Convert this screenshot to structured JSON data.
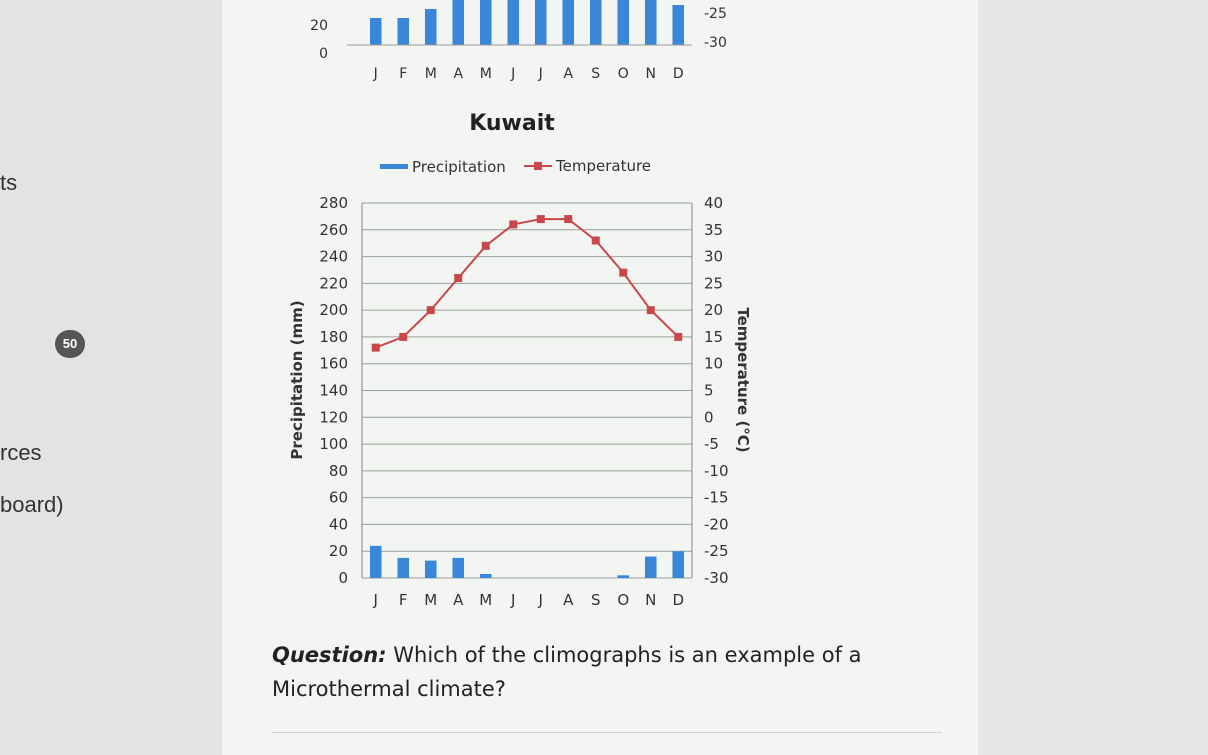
{
  "sidebar": {
    "items": [
      "ts",
      "rces",
      "board)"
    ],
    "badge": "50"
  },
  "top_chart": {
    "ytick_labels_left": [
      "20",
      "0"
    ],
    "ytick_labels_right": [
      "-25",
      "-30"
    ],
    "months": [
      "J",
      "F",
      "M",
      "A",
      "M",
      "J",
      "J",
      "A",
      "S",
      "O",
      "N",
      "D"
    ]
  },
  "chart_data": {
    "type": "bar",
    "title": "Kuwait",
    "categories": [
      "J",
      "F",
      "M",
      "A",
      "M",
      "J",
      "J",
      "A",
      "S",
      "O",
      "N",
      "D"
    ],
    "series": [
      {
        "name": "Precipitation",
        "type": "bar",
        "axis": "left",
        "values": [
          24,
          15,
          13,
          15,
          3,
          0,
          0,
          0,
          0,
          2,
          16,
          20
        ],
        "color": "#3a86d8"
      },
      {
        "name": "Temperature",
        "type": "line",
        "axis": "right",
        "values": [
          13,
          15,
          20,
          26,
          32,
          36,
          37,
          37,
          33,
          27,
          20,
          15
        ],
        "color": "#c8474a"
      }
    ],
    "ylabel": "Precipitation (mm)",
    "y2label": "Temperature (°C)",
    "ylim": [
      0,
      280
    ],
    "y2lim": [
      -30,
      40
    ],
    "yticks": [
      0,
      20,
      40,
      60,
      80,
      100,
      120,
      140,
      160,
      180,
      200,
      220,
      240,
      260,
      280
    ],
    "y2ticks": [
      40,
      35,
      30,
      25,
      20,
      15,
      10,
      5,
      0,
      -5,
      -10,
      -15,
      -20,
      -25,
      -30
    ],
    "legend": "top",
    "grid": true
  },
  "question": {
    "label": "Question:",
    "text": "Which of the climographs is an example of a Microthermal climate?"
  }
}
